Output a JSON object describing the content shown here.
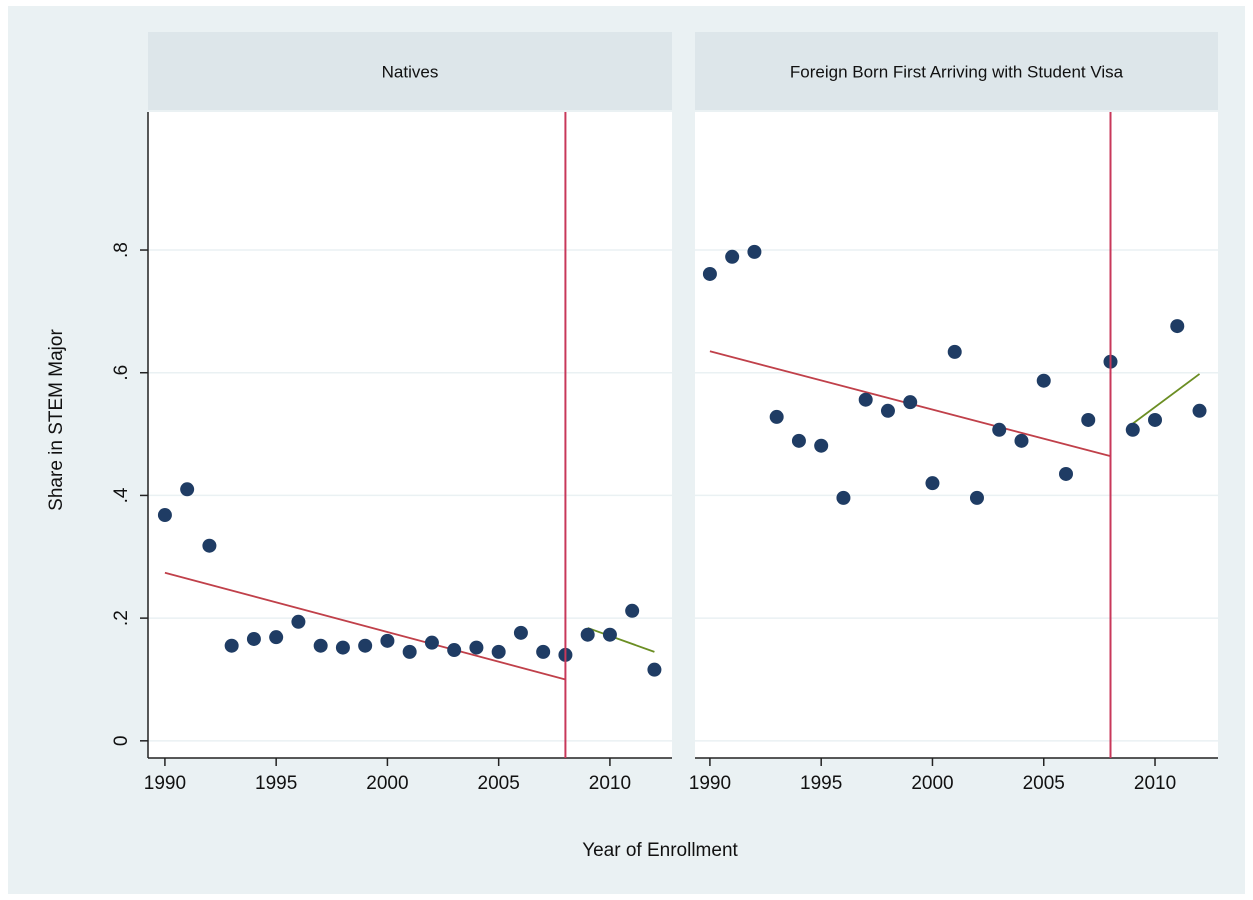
{
  "xlabel": "Year of Enrollment",
  "ylabel": "Share in STEM Major",
  "chart_data": [
    {
      "type": "scatter",
      "title": "Natives",
      "color": "#1f3c64",
      "x": [
        1990,
        1991,
        1992,
        1993,
        1994,
        1995,
        1996,
        1997,
        1998,
        1999,
        2000,
        2001,
        2002,
        2003,
        2004,
        2005,
        2006,
        2007,
        2008,
        2009,
        2010,
        2011,
        2012
      ],
      "values": [
        0.368,
        0.41,
        0.318,
        0.155,
        0.166,
        0.169,
        0.194,
        0.155,
        0.152,
        0.155,
        0.163,
        0.145,
        0.16,
        0.148,
        0.152,
        0.145,
        0.176,
        0.145,
        0.14,
        0.173,
        0.173,
        0.212,
        0.116
      ],
      "fit_lines": [
        {
          "x": [
            1990,
            2008
          ],
          "values": [
            0.274,
            0.1
          ],
          "color": "#c0404a"
        },
        {
          "x": [
            2009,
            2012
          ],
          "values": [
            0.184,
            0.145
          ],
          "color": "#6b8e23"
        }
      ],
      "vline": {
        "x": 2008,
        "color": "#c8385a"
      },
      "xlim": [
        1989.24,
        2012.79
      ],
      "ylim": [
        -0.028,
        1.025
      ],
      "xticks": [
        1990,
        1995,
        2000,
        2005,
        2010
      ],
      "yticks": [
        0,
        {
          "value": 0.2,
          "label": ".2"
        },
        {
          "value": 0.4,
          "label": ".4"
        },
        {
          "value": 0.6,
          "label": ".6"
        },
        {
          "value": 0.8,
          "label": ".8"
        }
      ],
      "grid": true
    },
    {
      "type": "scatter",
      "title": "Foreign Born First Arriving with Student Visa",
      "color": "#1f3c64",
      "x": [
        1990,
        1991,
        1992,
        1993,
        1994,
        1995,
        1996,
        1997,
        1998,
        1999,
        2000,
        2001,
        2002,
        2003,
        2004,
        2005,
        2006,
        2007,
        2008,
        2009,
        2010,
        2011,
        2012
      ],
      "values": [
        0.761,
        0.789,
        0.797,
        0.528,
        0.489,
        0.481,
        0.396,
        0.556,
        0.538,
        0.552,
        0.42,
        0.634,
        0.396,
        0.507,
        0.489,
        0.587,
        0.435,
        0.523,
        0.618,
        0.507,
        0.523,
        0.676,
        0.538
      ],
      "fit_lines": [
        {
          "x": [
            1990,
            2008
          ],
          "values": [
            0.635,
            0.464
          ],
          "color": "#c0404a"
        },
        {
          "x": [
            2009,
            2012
          ],
          "values": [
            0.517,
            0.598
          ],
          "color": "#6b8e23"
        }
      ],
      "vline": {
        "x": 2008,
        "color": "#c8385a"
      },
      "xlim": [
        1989.33,
        2012.83
      ],
      "ylim": [
        -0.028,
        1.025
      ],
      "xticks": [
        1990,
        1995,
        2000,
        2005,
        2010
      ],
      "grid": true
    }
  ]
}
